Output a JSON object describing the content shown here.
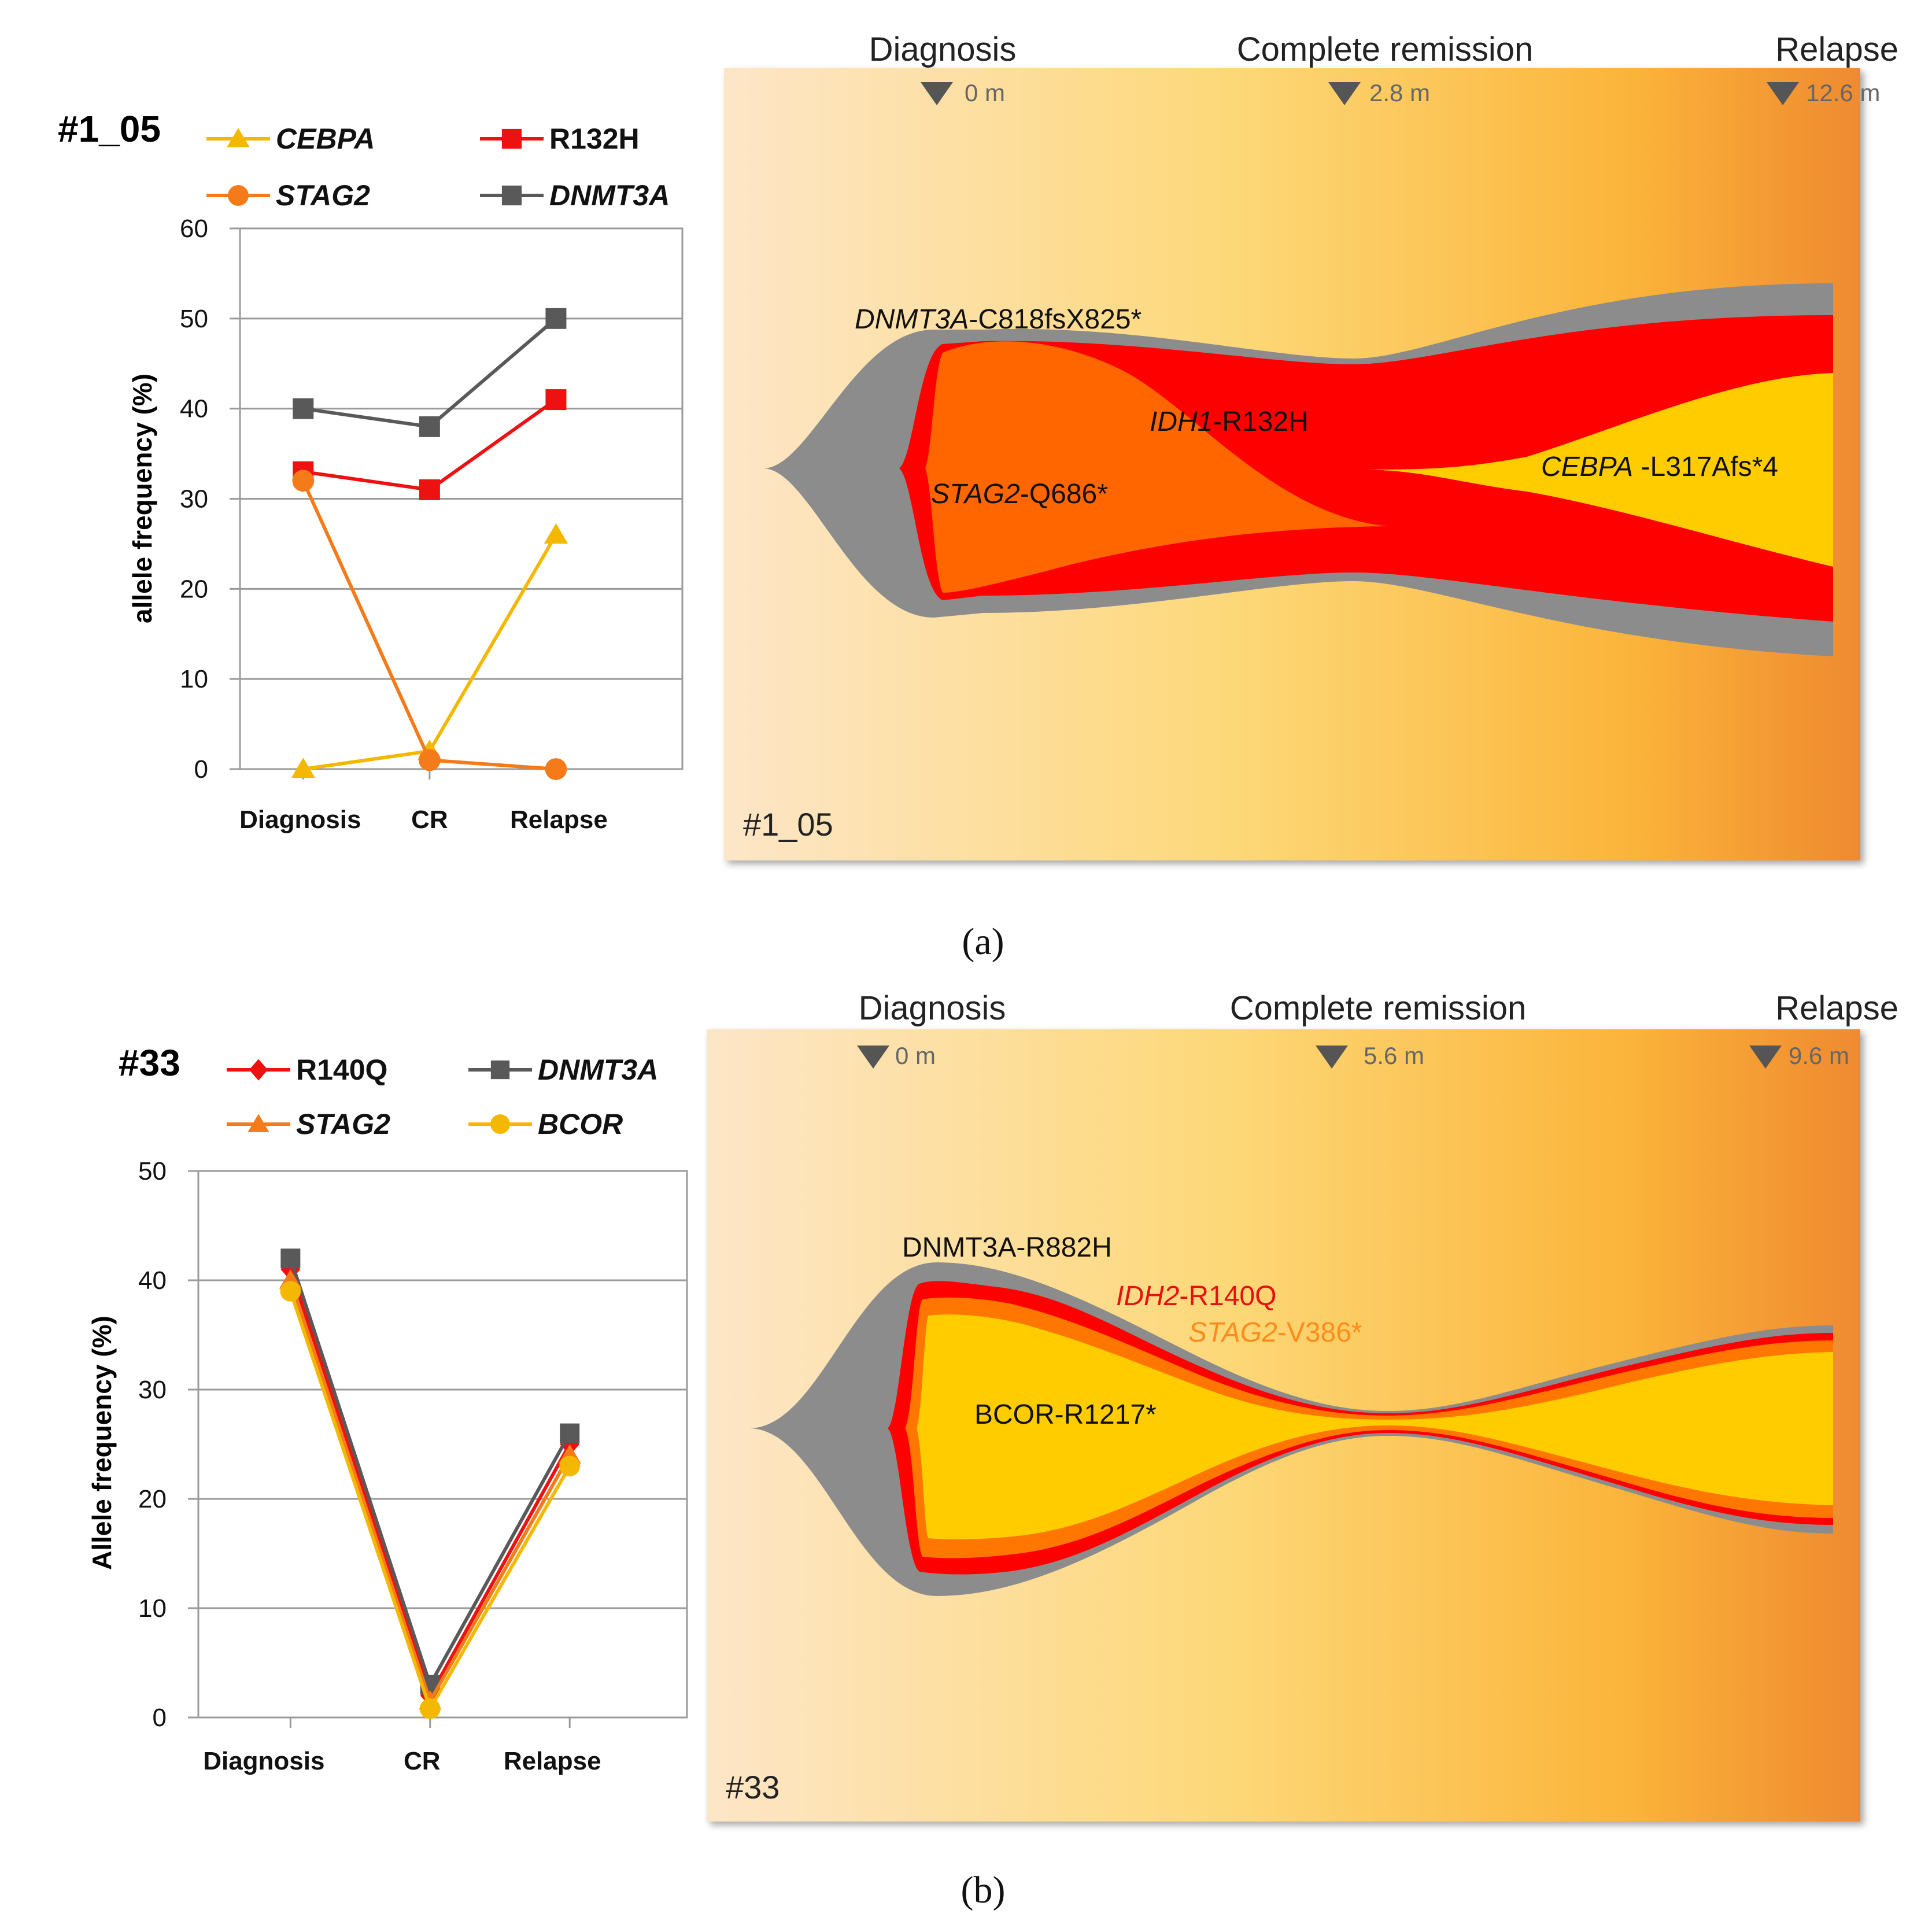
{
  "chart_data": [
    {
      "type": "line",
      "id": "a",
      "patient_id": "#1_05",
      "categories": [
        "Diagnosis",
        "CR",
        "Relapse"
      ],
      "ylabel": "allele frequency (%)",
      "ylim": [
        0,
        60
      ],
      "yticks": [
        0,
        10,
        20,
        30,
        40,
        50,
        60
      ],
      "grid": true,
      "legend_position": "top",
      "series": [
        {
          "name": "CEBPA",
          "italic": true,
          "color": "#f5b800",
          "marker": "triangle",
          "values": [
            0,
            2,
            26
          ]
        },
        {
          "name": "R132H",
          "italic": false,
          "color": "#ee1111",
          "marker": "square",
          "values": [
            33,
            31,
            41
          ]
        },
        {
          "name": "STAG2",
          "italic": true,
          "color": "#f47a1a",
          "marker": "circle",
          "values": [
            32,
            1,
            0
          ]
        },
        {
          "name": "DNMT3A",
          "italic": true,
          "color": "#595959",
          "marker": "square",
          "values": [
            40,
            38,
            50
          ]
        }
      ]
    },
    {
      "type": "line",
      "id": "b",
      "patient_id": "#33",
      "categories": [
        "Diagnosis",
        "CR",
        "Relapse"
      ],
      "ylabel": "Allele frequency (%)",
      "ylim": [
        0,
        50
      ],
      "yticks": [
        0,
        10,
        20,
        30,
        40,
        50
      ],
      "grid": true,
      "legend_position": "top",
      "series": [
        {
          "name": "R140Q",
          "italic": false,
          "color": "#ee1111",
          "marker": "diamond",
          "values": [
            41,
            2,
            25
          ]
        },
        {
          "name": "DNMT3A",
          "italic": true,
          "color": "#595959",
          "marker": "square",
          "values": [
            42,
            3,
            26
          ]
        },
        {
          "name": "STAG2",
          "italic": true,
          "color": "#f47a1a",
          "marker": "triangle",
          "values": [
            40,
            1.5,
            24
          ]
        },
        {
          "name": "BCOR",
          "italic": true,
          "color": "#f5b800",
          "marker": "circle",
          "values": [
            39,
            0.8,
            23
          ]
        }
      ]
    }
  ],
  "fishplots": [
    {
      "id": "a",
      "caption": "(a)",
      "corner_label": "#1_05",
      "timepoints": [
        {
          "label": "Diagnosis",
          "time": "0 m"
        },
        {
          "label": "Complete remission",
          "time": "2.8 m"
        },
        {
          "label": "Relapse",
          "time": "12.6 m"
        }
      ],
      "clones": [
        {
          "gene": "DNMT3A",
          "mutation": "-C818fsX825*",
          "gene_italic": true,
          "color": "#8c8c8c"
        },
        {
          "gene": "IDH1",
          "mutation": "-R132H",
          "gene_italic": true,
          "color": "#ff0000"
        },
        {
          "gene": "STAG2",
          "mutation": "-Q686*",
          "gene_italic": true,
          "color": "#ff6600"
        },
        {
          "gene": "CEBPA",
          "mutation": " -L317Afs*4",
          "gene_italic": true,
          "color": "#ffcc00"
        }
      ]
    },
    {
      "id": "b",
      "caption": "(b)",
      "corner_label": "#33",
      "timepoints": [
        {
          "label": "Diagnosis",
          "time": "0 m"
        },
        {
          "label": "Complete remission",
          "time": "5.6 m"
        },
        {
          "label": "Relapse",
          "time": "9.6 m"
        }
      ],
      "clones": [
        {
          "gene": "DNMT3A-R882H",
          "mutation": "",
          "gene_italic": false,
          "color": "#8c8c8c"
        },
        {
          "gene": "IDH2",
          "mutation": "-R140Q",
          "gene_italic": true,
          "color": "#ff0000"
        },
        {
          "gene": "STAG2",
          "mutation": "-V386*",
          "gene_italic": true,
          "color": "#ff8c1a"
        },
        {
          "gene": "BCOR-R1217*",
          "mutation": "",
          "gene_italic": false,
          "color": "#ffcc00"
        }
      ]
    }
  ]
}
